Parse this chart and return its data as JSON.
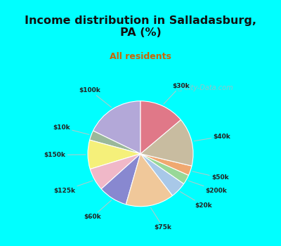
{
  "title": "Income distribution in Salladasburg,\nPA (%)",
  "subtitle": "All residents",
  "bg_cyan": "#00FFFF",
  "bg_chart": "#d4efe8",
  "labels": [
    "$100k",
    "$10k",
    "$150k",
    "$125k",
    "$60k",
    "$75k",
    "$20k",
    "$200k",
    "$50k",
    "$40k",
    "$30k"
  ],
  "sizes": [
    18,
    3,
    9,
    7,
    9,
    15,
    5,
    3,
    3,
    15,
    14
  ],
  "colors": [
    "#b3a8d8",
    "#9ab89a",
    "#f5f07a",
    "#f0b8c8",
    "#8888d0",
    "#f0c89a",
    "#a8c8e8",
    "#98d898",
    "#f0a870",
    "#c8bca0",
    "#e07888"
  ],
  "startangle": 90,
  "watermark": "  City-Data.com"
}
